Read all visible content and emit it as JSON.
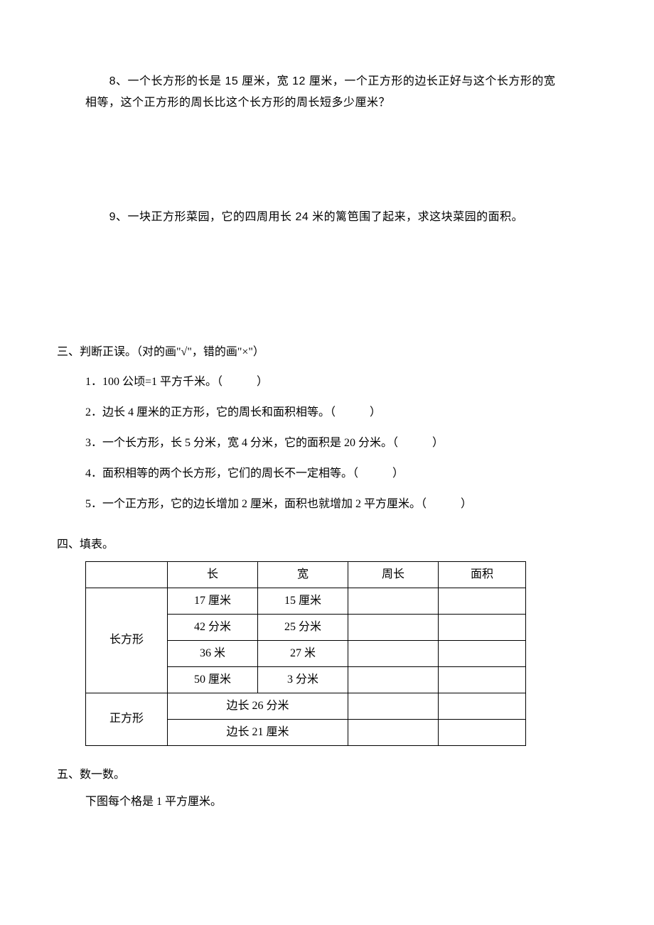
{
  "q8": {
    "line1": "8、一个长方形的长是 15 厘米，宽 12 厘米，一个正方形的边长正好与这个长方形的宽",
    "line2": "相等，这个正方形的周长比这个长方形的周长短多少厘米？"
  },
  "q9": {
    "text": "9、一块正方形菜园，它的四周用长 24 米的篱笆围了起来，求这块菜园的面积。"
  },
  "section3": {
    "heading": "三、判断正误。（对的画\"√\"，错的画\"×\"）",
    "items": [
      "1．100 公顷=1 平方千米。（　　　）",
      "2．边长 4 厘米的正方形，它的周长和面积相等。（　　　）",
      "3．一个长方形，长 5 分米，宽 4 分米，它的面积是 20 分米。（　　　）",
      "4．面积相等的两个长方形，它们的周长不一定相等。（　　　）",
      "5．一个正方形，它的边长增加 2 厘米，面积也就增加 2 平方厘米。（　　　）"
    ]
  },
  "section4": {
    "heading": "四、填表。",
    "columns": [
      "",
      "长",
      "宽",
      "周长",
      "面积"
    ],
    "rect_label": "长方形",
    "square_label": "正方形",
    "rect_rows": [
      {
        "length": "17 厘米",
        "width": "15 厘米",
        "perimeter": "",
        "area": ""
      },
      {
        "length": "42 分米",
        "width": "25 分米",
        "perimeter": "",
        "area": ""
      },
      {
        "length": "36 米",
        "width": "27 米",
        "perimeter": "",
        "area": ""
      },
      {
        "length": "50 厘米",
        "width": "3 分米",
        "perimeter": "",
        "area": ""
      }
    ],
    "square_rows": [
      {
        "side": "边长 26 分米",
        "perimeter": "",
        "area": ""
      },
      {
        "side": "边长 21 厘米",
        "perimeter": "",
        "area": ""
      }
    ]
  },
  "section5": {
    "heading": "五、数一数。",
    "sub": "下图每个格是 1 平方厘米。"
  }
}
